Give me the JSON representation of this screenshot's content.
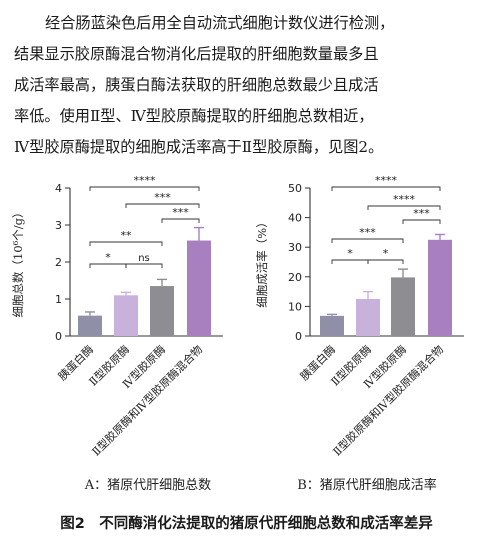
{
  "paragraph": [
    "经合肠蓝染色后用全自动流式细胞计数仪进行检测，",
    "结果显示胶原酶混合物消化后提取的肝细胞数量最多且",
    "成活率最高，胰蛋白酶法获取的肝细胞总数最少且成活",
    "率低。使用Ⅱ型、Ⅳ型胶原酶提取的肝细胞总数相近，",
    "Ⅳ型胶原酶提取的细胞成活率高于Ⅱ型胶原酶，见图2。"
  ],
  "figure_caption": "图2　不同酶消化法提取的猪原代肝细胞总数和成活率差异",
  "chart_data": [
    {
      "type": "bar",
      "panel_label": "A：猪原代肝细胞总数",
      "ylabel": "细胞总数（10⁶个/g）",
      "ylim": [
        0,
        4
      ],
      "yticks": [
        0,
        1,
        2,
        3,
        4
      ],
      "categories": [
        "胰蛋白酶",
        "Ⅱ型胶原酶",
        "Ⅳ型胶原酶",
        "Ⅱ型胶原酶和Ⅳ型胶原酶混合物"
      ],
      "values": [
        0.55,
        1.1,
        1.35,
        2.58
      ],
      "errors": [
        0.1,
        0.08,
        0.18,
        0.35
      ],
      "colors": [
        "#8f8fa8",
        "#c8b2dc",
        "#8e8e92",
        "#a880bf"
      ],
      "significance": [
        {
          "from": 0,
          "to": 3,
          "label": "****"
        },
        {
          "from": 1,
          "to": 3,
          "label": "***"
        },
        {
          "from": 2,
          "to": 3,
          "label": "***"
        },
        {
          "from": 0,
          "to": 2,
          "label": "**"
        },
        {
          "from": 0,
          "to": 1,
          "label": "*"
        },
        {
          "from": 1,
          "to": 2,
          "label": "ns"
        }
      ]
    },
    {
      "type": "bar",
      "panel_label": "B：猪原代肝细胞成活率",
      "ylabel": "细胞成活率（%）",
      "ylim": [
        0,
        50
      ],
      "yticks": [
        0,
        10,
        20,
        30,
        40,
        50
      ],
      "categories": [
        "胰蛋白酶",
        "Ⅱ型胶原酶",
        "Ⅳ型胶原酶",
        "Ⅱ型胶原酶和Ⅳ型胶原酶混合物"
      ],
      "values": [
        6.8,
        12.5,
        19.8,
        32.5
      ],
      "errors": [
        0.5,
        2.5,
        2.8,
        1.8
      ],
      "colors": [
        "#8f8fa8",
        "#c8b2dc",
        "#8e8e92",
        "#a880bf"
      ],
      "significance": [
        {
          "from": 0,
          "to": 3,
          "label": "****"
        },
        {
          "from": 1,
          "to": 3,
          "label": "****"
        },
        {
          "from": 2,
          "to": 3,
          "label": "***"
        },
        {
          "from": 0,
          "to": 2,
          "label": "***"
        },
        {
          "from": 0,
          "to": 1,
          "label": "*"
        },
        {
          "from": 1,
          "to": 2,
          "label": "*"
        }
      ]
    }
  ]
}
